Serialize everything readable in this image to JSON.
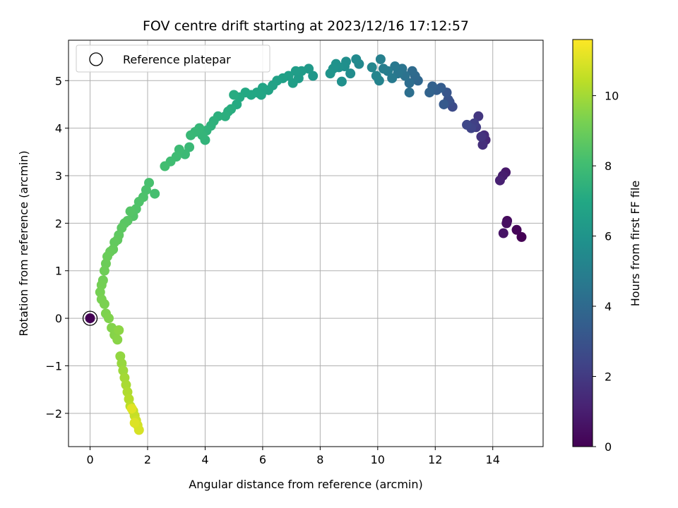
{
  "chart_data": {
    "type": "scatter",
    "title": "FOV centre drift starting at 2023/12/16 17:12:57",
    "xlabel": "Angular distance from reference (arcmin)",
    "ylabel": "Rotation from reference (arcmin)",
    "xlim": [
      -0.75,
      15.75
    ],
    "ylim": [
      -2.7,
      5.85
    ],
    "xticks": [
      0,
      2,
      4,
      6,
      8,
      10,
      12,
      14
    ],
    "yticks": [
      -2,
      -1,
      0,
      1,
      2,
      3,
      4,
      5
    ],
    "xtick_labels": [
      "0",
      "2",
      "4",
      "6",
      "8",
      "10",
      "12",
      "14"
    ],
    "ytick_labels": [
      "−2",
      "−1",
      "0",
      "1",
      "2",
      "3",
      "4",
      "5"
    ],
    "grid": true,
    "legend": {
      "placement": "top-left",
      "entries": [
        "Reference platepar"
      ]
    },
    "colorbar": {
      "label": "Hours from first FF file",
      "colormap": "viridis",
      "range": [
        0,
        11.6
      ],
      "ticks": [
        0,
        2,
        4,
        6,
        8,
        10
      ],
      "tick_labels": [
        "0",
        "2",
        "4",
        "6",
        "8",
        "10"
      ]
    },
    "reference_point": {
      "x": 0,
      "y": 0,
      "hours": 0,
      "label": "Reference platepar"
    },
    "points": [
      [
        15.0,
        1.71,
        0.0
      ],
      [
        14.83,
        1.86,
        0.15
      ],
      [
        14.5,
        2.05,
        0.3
      ],
      [
        14.48,
        2.0,
        0.45
      ],
      [
        14.37,
        1.79,
        0.6
      ],
      [
        14.45,
        3.07,
        0.8
      ],
      [
        14.35,
        3.0,
        0.95
      ],
      [
        14.25,
        2.9,
        1.1
      ],
      [
        13.75,
        3.75,
        1.3
      ],
      [
        13.7,
        3.85,
        1.45
      ],
      [
        13.65,
        3.65,
        1.6
      ],
      [
        13.6,
        3.82,
        1.75
      ],
      [
        13.5,
        4.25,
        1.9
      ],
      [
        13.42,
        4.02,
        2.05
      ],
      [
        13.35,
        4.1,
        2.2
      ],
      [
        13.25,
        4.0,
        2.35
      ],
      [
        13.1,
        4.07,
        2.5
      ],
      [
        12.6,
        4.45,
        2.65
      ],
      [
        12.5,
        4.55,
        2.8
      ],
      [
        12.45,
        4.6,
        2.95
      ],
      [
        12.4,
        4.75,
        3.1
      ],
      [
        12.3,
        4.5,
        3.25
      ],
      [
        12.2,
        4.85,
        3.4
      ],
      [
        12.05,
        4.8,
        3.5
      ],
      [
        11.9,
        4.88,
        3.6
      ],
      [
        11.8,
        4.75,
        3.7
      ],
      [
        11.4,
        5.0,
        3.85
      ],
      [
        11.3,
        5.1,
        3.95
      ],
      [
        11.2,
        5.2,
        4.05
      ],
      [
        11.1,
        4.95,
        4.15
      ],
      [
        11.1,
        4.75,
        4.25
      ],
      [
        10.95,
        5.1,
        4.35
      ],
      [
        10.85,
        5.25,
        4.45
      ],
      [
        10.7,
        5.15,
        4.55
      ],
      [
        10.6,
        5.3,
        4.65
      ],
      [
        10.5,
        5.05,
        4.75
      ],
      [
        10.35,
        5.2,
        4.85
      ],
      [
        10.2,
        5.25,
        4.95
      ],
      [
        10.1,
        5.45,
        5.05
      ],
      [
        10.05,
        5.0,
        5.15
      ],
      [
        9.95,
        5.1,
        5.25
      ],
      [
        9.8,
        5.28,
        5.3
      ],
      [
        9.35,
        5.35,
        5.4
      ],
      [
        9.25,
        5.45,
        5.5
      ],
      [
        9.05,
        5.15,
        5.6
      ],
      [
        8.9,
        5.4,
        5.7
      ],
      [
        8.85,
        5.3,
        5.75
      ],
      [
        8.75,
        4.98,
        5.8
      ],
      [
        8.65,
        5.28,
        5.85
      ],
      [
        8.55,
        5.35,
        5.9
      ],
      [
        8.45,
        5.25,
        5.95
      ],
      [
        8.35,
        5.15,
        6.0
      ],
      [
        7.75,
        5.1,
        6.15
      ],
      [
        7.6,
        5.25,
        6.25
      ],
      [
        7.35,
        5.2,
        6.35
      ],
      [
        7.25,
        5.05,
        6.4
      ],
      [
        7.15,
        5.2,
        6.45
      ],
      [
        7.05,
        4.95,
        6.5
      ],
      [
        6.9,
        5.1,
        6.55
      ],
      [
        6.7,
        5.05,
        6.6
      ],
      [
        6.5,
        5.0,
        6.65
      ],
      [
        6.35,
        4.9,
        6.7
      ],
      [
        6.2,
        4.8,
        6.75
      ],
      [
        6.0,
        4.85,
        6.8
      ],
      [
        5.95,
        4.7,
        6.85
      ],
      [
        5.8,
        4.75,
        6.9
      ],
      [
        5.6,
        4.7,
        6.95
      ],
      [
        5.4,
        4.75,
        7.0
      ],
      [
        5.2,
        4.65,
        7.05
      ],
      [
        5.1,
        4.5,
        7.1
      ],
      [
        5.0,
        4.7,
        7.15
      ],
      [
        4.9,
        4.4,
        7.2
      ],
      [
        4.8,
        4.35,
        7.25
      ],
      [
        4.7,
        4.25,
        7.3
      ],
      [
        4.45,
        4.25,
        7.35
      ],
      [
        4.3,
        4.15,
        7.4
      ],
      [
        4.2,
        4.05,
        7.45
      ],
      [
        4.05,
        3.95,
        7.5
      ],
      [
        4.0,
        3.75,
        7.55
      ],
      [
        3.9,
        3.85,
        7.6
      ],
      [
        3.8,
        4.0,
        7.65
      ],
      [
        3.65,
        3.92,
        7.7
      ],
      [
        3.5,
        3.85,
        7.75
      ],
      [
        3.45,
        3.6,
        7.8
      ],
      [
        3.3,
        3.45,
        7.85
      ],
      [
        3.1,
        3.55,
        7.9
      ],
      [
        3.0,
        3.4,
        7.95
      ],
      [
        2.8,
        3.3,
        8.0
      ],
      [
        2.6,
        3.2,
        8.05
      ],
      [
        2.25,
        2.62,
        8.15
      ],
      [
        2.05,
        2.85,
        8.2
      ],
      [
        1.95,
        2.7,
        8.25
      ],
      [
        1.85,
        2.55,
        8.3
      ],
      [
        1.7,
        2.45,
        8.35
      ],
      [
        1.6,
        2.3,
        8.4
      ],
      [
        1.5,
        2.15,
        8.45
      ],
      [
        1.4,
        2.25,
        8.5
      ],
      [
        1.3,
        2.05,
        8.55
      ],
      [
        1.2,
        2.0,
        8.6
      ],
      [
        1.1,
        1.9,
        8.65
      ],
      [
        1.0,
        1.75,
        8.7
      ],
      [
        0.95,
        1.65,
        8.75
      ],
      [
        0.85,
        1.6,
        8.8
      ],
      [
        0.8,
        1.45,
        8.85
      ],
      [
        0.7,
        1.4,
        8.9
      ],
      [
        0.6,
        1.3,
        8.95
      ],
      [
        0.55,
        1.15,
        9.0
      ],
      [
        0.5,
        1.0,
        9.05
      ],
      [
        0.45,
        0.8,
        9.1
      ],
      [
        0.4,
        0.7,
        9.15
      ],
      [
        0.35,
        0.55,
        9.2
      ],
      [
        0.4,
        0.4,
        9.25
      ],
      [
        0.5,
        0.3,
        9.3
      ],
      [
        0.55,
        0.1,
        9.35
      ],
      [
        0.65,
        0.0,
        9.4
      ],
      [
        0.75,
        -0.2,
        9.45
      ],
      [
        0.85,
        -0.35,
        9.5
      ],
      [
        0.95,
        -0.45,
        9.55
      ],
      [
        1.0,
        -0.25,
        9.6
      ],
      [
        1.05,
        -0.8,
        9.7
      ],
      [
        1.1,
        -0.95,
        9.8
      ],
      [
        1.15,
        -1.1,
        9.9
      ],
      [
        1.2,
        -1.25,
        10.0
      ],
      [
        1.25,
        -1.4,
        10.1
      ],
      [
        1.3,
        -1.55,
        10.2
      ],
      [
        1.35,
        -1.7,
        10.3
      ],
      [
        1.4,
        -1.85,
        10.4
      ],
      [
        1.5,
        -1.95,
        10.5
      ],
      [
        1.55,
        -2.05,
        10.6
      ],
      [
        1.6,
        -2.15,
        10.7
      ],
      [
        1.65,
        -2.25,
        10.8
      ],
      [
        1.7,
        -2.35,
        10.9
      ],
      [
        1.55,
        -2.2,
        11.0
      ],
      [
        1.45,
        -1.9,
        11.1
      ]
    ]
  }
}
